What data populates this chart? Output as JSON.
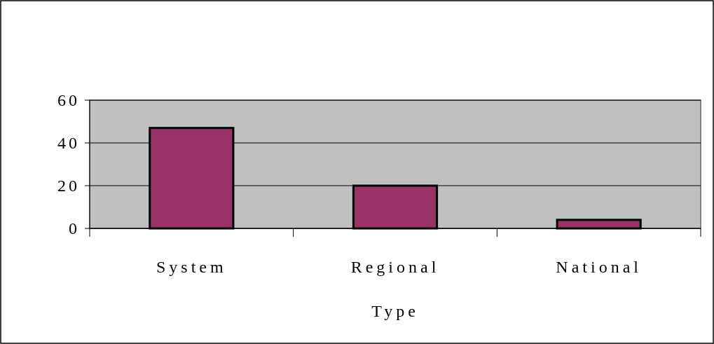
{
  "chart_data": {
    "type": "bar",
    "xlabel": "Type",
    "categories": [
      "System",
      "Regional",
      "National"
    ],
    "values": [
      47,
      20,
      4
    ],
    "color": "#993366",
    "ylim": [
      0,
      60
    ],
    "yticks": [
      0,
      20,
      40,
      60
    ],
    "grid": "y"
  }
}
